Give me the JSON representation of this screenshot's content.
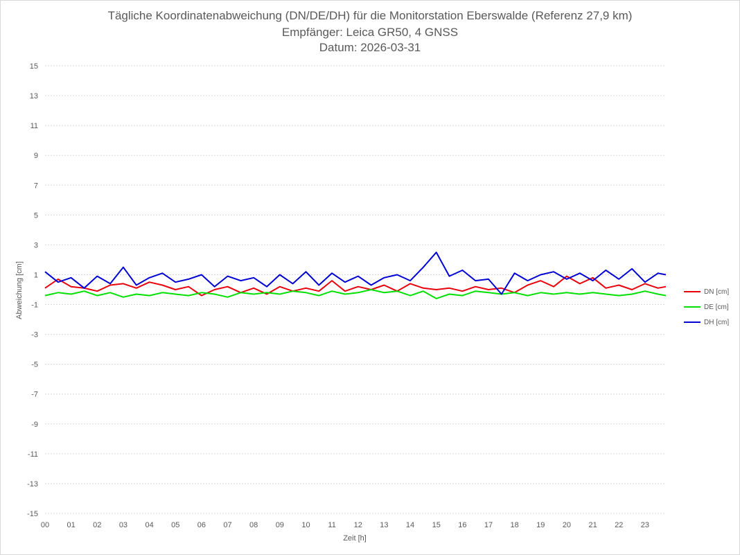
{
  "title_lines": [
    "Tägliche Koordinatenabweichung (DN/DE/DH) für die Monitorstation Eberswalde (Referenz 27,9 km)",
    "Empfänger: Leica GR50, 4 GNSS",
    "Datum: 2026-03-31"
  ],
  "chart_data": {
    "type": "line",
    "title": "Tägliche Koordinatenabweichung (DN/DE/DH) für die Monitorstation Eberswalde (Referenz 27,9 km)",
    "subtitle": "Empfänger: Leica GR50, 4 GNSS / Datum: 2026-03-31",
    "xlabel": "Zeit [h]",
    "ylabel": "Abweichung [cm]",
    "xlim": [
      0,
      23.8
    ],
    "ylim": [
      -15,
      15
    ],
    "x_ticks": [
      "00",
      "01",
      "02",
      "03",
      "04",
      "05",
      "06",
      "07",
      "08",
      "09",
      "10",
      "11",
      "12",
      "13",
      "14",
      "15",
      "16",
      "17",
      "18",
      "19",
      "20",
      "21",
      "22",
      "23"
    ],
    "y_ticks": [
      15,
      13,
      11,
      9,
      7,
      5,
      3,
      1,
      -1,
      -3,
      -5,
      -7,
      -9,
      -11,
      -13,
      -15
    ],
    "grid": true,
    "legend_position": "right",
    "x_step": 0.5,
    "series": [
      {
        "name": "DN [cm]",
        "color": "#e8000b",
        "values": [
          0.1,
          0.7,
          0.2,
          0.1,
          -0.1,
          0.3,
          0.4,
          0.1,
          0.5,
          0.3,
          0.0,
          0.2,
          -0.4,
          0.0,
          0.2,
          -0.2,
          0.1,
          -0.3,
          0.2,
          -0.1,
          0.1,
          -0.1,
          0.6,
          -0.1,
          0.2,
          0.0,
          0.3,
          -0.1,
          0.4,
          0.1,
          0.0,
          0.1,
          -0.1,
          0.2,
          0.0,
          0.1,
          -0.2,
          0.3,
          0.6,
          0.2,
          0.9,
          0.4,
          0.8,
          0.1,
          0.3,
          0.0,
          0.4,
          0.1,
          0.2
        ]
      },
      {
        "name": "DE [cm]",
        "color": "#00e000",
        "values": [
          -0.4,
          -0.2,
          -0.3,
          -0.1,
          -0.4,
          -0.2,
          -0.5,
          -0.3,
          -0.4,
          -0.2,
          -0.3,
          -0.4,
          -0.2,
          -0.3,
          -0.5,
          -0.2,
          -0.3,
          -0.2,
          -0.3,
          -0.1,
          -0.2,
          -0.4,
          -0.1,
          -0.3,
          -0.2,
          0.0,
          -0.2,
          -0.1,
          -0.4,
          -0.1,
          -0.6,
          -0.3,
          -0.4,
          -0.1,
          -0.2,
          -0.3,
          -0.2,
          -0.4,
          -0.2,
          -0.3,
          -0.2,
          -0.3,
          -0.2,
          -0.3,
          -0.4,
          -0.3,
          -0.1,
          -0.3,
          -0.4
        ]
      },
      {
        "name": "DH [cm]",
        "color": "#0000d4",
        "values": [
          1.2,
          0.5,
          0.8,
          0.1,
          0.9,
          0.4,
          1.5,
          0.3,
          0.8,
          1.1,
          0.5,
          0.7,
          1.0,
          0.2,
          0.9,
          0.6,
          0.8,
          0.2,
          1.0,
          0.4,
          1.2,
          0.3,
          1.1,
          0.5,
          0.9,
          0.3,
          0.8,
          1.0,
          0.6,
          1.5,
          2.5,
          0.9,
          1.3,
          0.6,
          0.7,
          -0.3,
          1.1,
          0.6,
          1.0,
          1.2,
          0.7,
          1.1,
          0.6,
          1.3,
          0.7,
          1.4,
          0.5,
          1.1,
          1.0
        ]
      }
    ]
  }
}
